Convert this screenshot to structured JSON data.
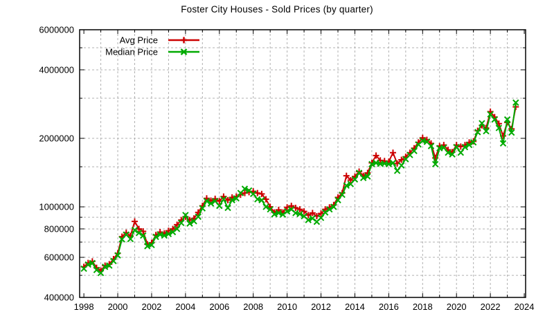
{
  "chart_data": {
    "type": "line",
    "title": "Foster City Houses - Sold Prices (by quarter)",
    "x_start": 1998.0,
    "x_step": 0.25,
    "xlim": [
      1998,
      2024
    ],
    "ylim": [
      400000,
      6000000
    ],
    "yscale": "log",
    "grid": "dashed-gray",
    "legend_position": "top-left-inside",
    "x_labeled_ticks": [
      1998,
      2000,
      2002,
      2004,
      2006,
      2008,
      2010,
      2012,
      2014,
      2016,
      2018,
      2020,
      2022,
      2024
    ],
    "x_minor_tick_step": 1,
    "y_labeled_ticks": [
      400000,
      600000,
      800000,
      1000000,
      2000000,
      4000000,
      6000000
    ],
    "y_minor_ticks": [
      500000,
      700000,
      900000,
      1500000,
      3000000,
      5000000
    ],
    "series": [
      {
        "name": "Avg Price",
        "color": "#cc0000",
        "marker": "plus",
        "values": [
          545000,
          567000,
          576000,
          540000,
          525000,
          552000,
          560000,
          590000,
          625000,
          740000,
          770000,
          745000,
          863000,
          800000,
          780000,
          685000,
          695000,
          752000,
          775000,
          765000,
          785000,
          800000,
          835000,
          875000,
          905000,
          875000,
          890000,
          945000,
          1010000,
          1090000,
          1065000,
          1085000,
          1060000,
          1110000,
          1070000,
          1100000,
          1110000,
          1130000,
          1150000,
          1160000,
          1170000,
          1150000,
          1140000,
          1080000,
          1000000,
          945000,
          970000,
          945000,
          995000,
          1010000,
          990000,
          975000,
          955000,
          920000,
          940000,
          910000,
          935000,
          975000,
          995000,
          1020000,
          1100000,
          1150000,
          1370000,
          1310000,
          1360000,
          1430000,
          1370000,
          1410000,
          1560000,
          1680000,
          1600000,
          1590000,
          1580000,
          1730000,
          1550000,
          1610000,
          1660000,
          1730000,
          1810000,
          1920000,
          2010000,
          1970000,
          1900000,
          1640000,
          1850000,
          1870000,
          1780000,
          1740000,
          1870000,
          1840000,
          1870000,
          1920000,
          1940000,
          2160000,
          2280000,
          2220000,
          2620000,
          2480000,
          2320000,
          2050000,
          2350000,
          2200000,
          2750000
        ]
      },
      {
        "name": "Median Price",
        "color": "#00aa00",
        "marker": "cross",
        "values": [
          535000,
          558000,
          566000,
          528000,
          512000,
          545000,
          552000,
          578000,
          612000,
          720000,
          755000,
          722000,
          790000,
          768000,
          748000,
          672000,
          680000,
          738000,
          755000,
          748000,
          760000,
          775000,
          800000,
          850000,
          920000,
          845000,
          865000,
          905000,
          985000,
          1060000,
          1035000,
          1060000,
          1010000,
          1080000,
          990000,
          1070000,
          1090000,
          1150000,
          1200000,
          1180000,
          1140000,
          1080000,
          1070000,
          1000000,
          975000,
          928000,
          940000,
          925000,
          955000,
          975000,
          940000,
          930000,
          910000,
          875000,
          890000,
          860000,
          895000,
          945000,
          975000,
          1000000,
          1070000,
          1130000,
          1240000,
          1260000,
          1320000,
          1410000,
          1340000,
          1360000,
          1540000,
          1560000,
          1545000,
          1550000,
          1540000,
          1560000,
          1440000,
          1520000,
          1620000,
          1690000,
          1760000,
          1880000,
          1950000,
          1930000,
          1850000,
          1540000,
          1810000,
          1820000,
          1730000,
          1700000,
          1830000,
          1730000,
          1830000,
          1870000,
          1920000,
          2130000,
          2330000,
          2150000,
          2550000,
          2420000,
          2220000,
          1900000,
          2420000,
          2120000,
          2870000
        ]
      }
    ]
  },
  "colors": {
    "background": "#ffffff",
    "grid": "#b0b0b0",
    "axis": "#000000",
    "text": "#000000",
    "avg_series": "#cc0000",
    "median_series": "#00aa00"
  }
}
